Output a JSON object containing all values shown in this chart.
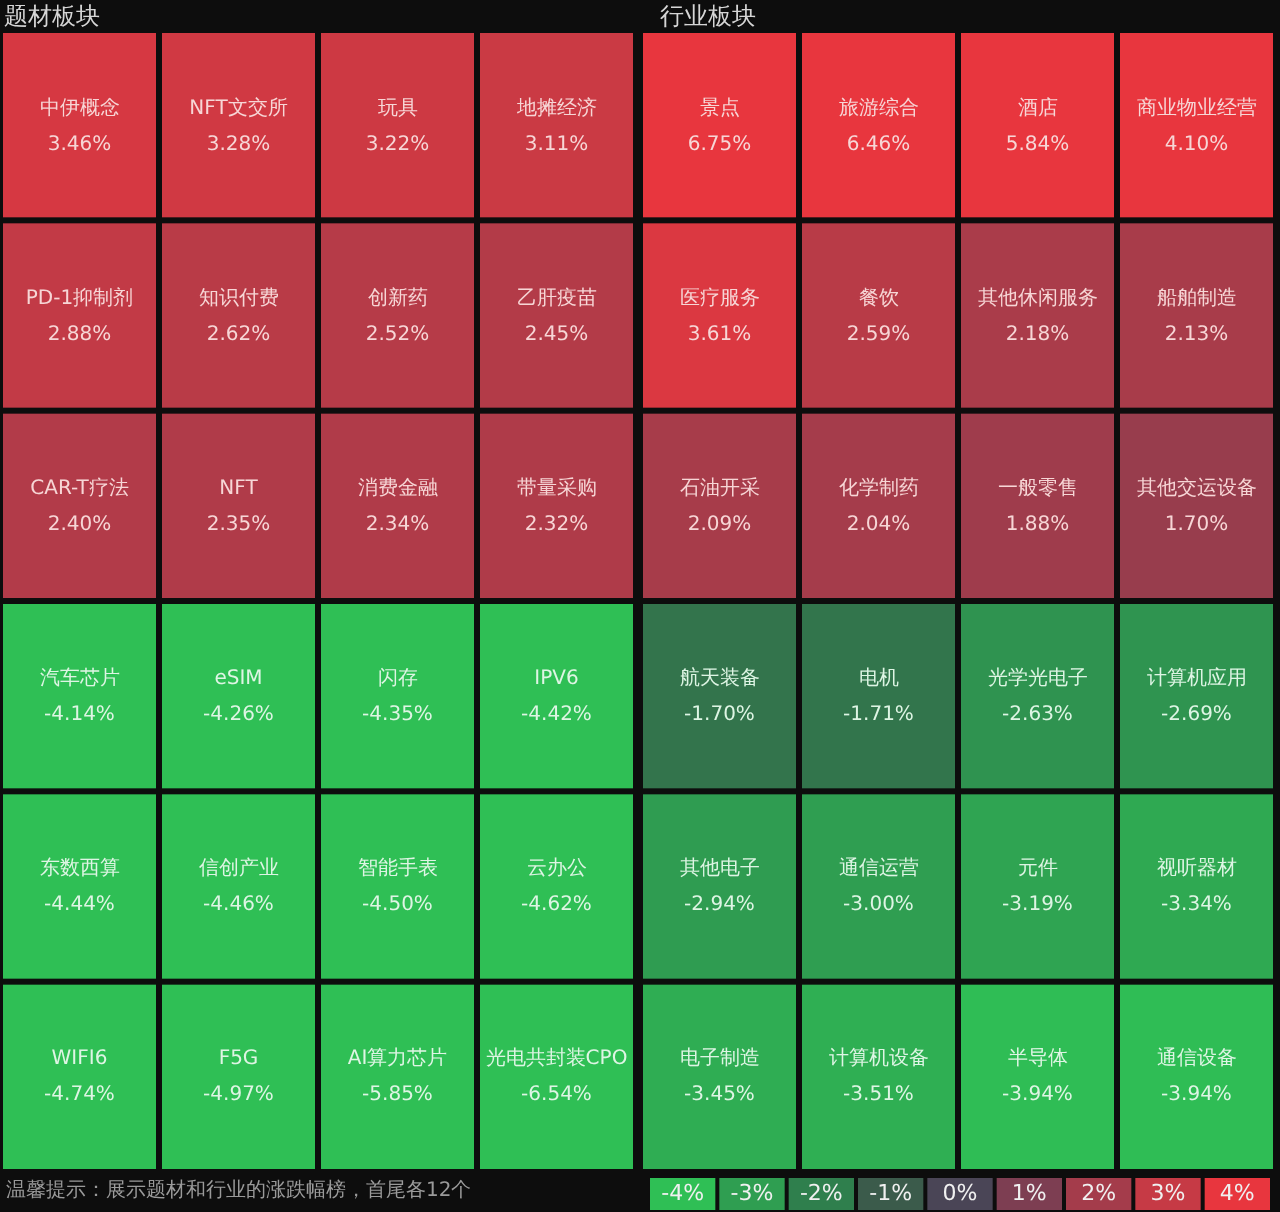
{
  "chart_data": [
    {
      "type": "other",
      "title": "题材板块",
      "categories": [
        "中伊概念",
        "NFT文交所",
        "玩具",
        "地摊经济",
        "PD-1抑制剂",
        "知识付费",
        "创新药",
        "乙肝疫苗",
        "CAR-T疗法",
        "NFT",
        "消费金融",
        "带量采购",
        "汽车芯片",
        "eSIM",
        "闪存",
        "IPV6",
        "东数西算",
        "信创产业",
        "智能手表",
        "云办公",
        "WIFI6",
        "F5G",
        "AI算力芯片",
        "光电共封装CPO"
      ],
      "values": [
        3.46,
        3.28,
        3.22,
        3.11,
        2.88,
        2.62,
        2.52,
        2.45,
        2.4,
        2.35,
        2.34,
        2.32,
        -4.14,
        -4.26,
        -4.35,
        -4.42,
        -4.44,
        -4.46,
        -4.5,
        -4.62,
        -4.74,
        -4.97,
        -5.85,
        -6.54
      ],
      "value_labels": [
        "3.46%",
        "3.28%",
        "3.22%",
        "3.11%",
        "2.88%",
        "2.62%",
        "2.52%",
        "2.45%",
        "2.40%",
        "2.35%",
        "2.34%",
        "2.32%",
        "-4.14%",
        "-4.26%",
        "-4.35%",
        "-4.42%",
        "-4.44%",
        "-4.46%",
        "-4.50%",
        "-4.62%",
        "-4.74%",
        "-4.97%",
        "-5.85%",
        "-6.54%"
      ],
      "annotations": [
        "温馨提示：展示题材和行业的涨跌幅榜，首尾各12个"
      ]
    },
    {
      "type": "other",
      "title": "行业板块",
      "categories": [
        "景点",
        "旅游综合",
        "酒店",
        "商业物业经营",
        "医疗服务",
        "餐饮",
        "其他休闲服务",
        "船舶制造",
        "石油开采",
        "化学制药",
        "一般零售",
        "其他交运设备",
        "航天装备",
        "电机",
        "光学光电子",
        "计算机应用",
        "其他电子",
        "通信运营",
        "元件",
        "视听器材",
        "电子制造",
        "计算机设备",
        "半导体",
        "通信设备"
      ],
      "values": [
        6.75,
        6.46,
        5.84,
        4.1,
        3.61,
        2.59,
        2.18,
        2.13,
        2.09,
        2.04,
        1.88,
        1.7,
        -1.7,
        -1.71,
        -2.63,
        -2.69,
        -2.94,
        -3.0,
        -3.19,
        -3.34,
        -3.45,
        -3.51,
        -3.94,
        -3.94
      ],
      "value_labels": [
        "6.75%",
        "6.46%",
        "5.84%",
        "4.10%",
        "3.61%",
        "2.59%",
        "2.18%",
        "2.13%",
        "2.09%",
        "2.04%",
        "1.88%",
        "1.70%",
        "-1.70%",
        "-1.71%",
        "-2.63%",
        "-2.69%",
        "-2.94%",
        "-3.00%",
        "-3.19%",
        "-3.34%",
        "-3.45%",
        "-3.51%",
        "-3.94%",
        "-3.94%"
      ]
    },
    {
      "type": "other",
      "values": [
        -4,
        -3,
        -2,
        -1,
        0,
        1,
        2,
        3,
        4
      ],
      "value_labels": [
        "-4%",
        "-3%",
        "-2%",
        "-1%",
        "0%",
        "1%",
        "2%",
        "3%",
        "4%"
      ]
    }
  ]
}
